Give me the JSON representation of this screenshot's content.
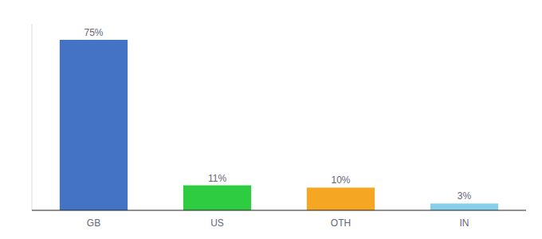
{
  "chart_data": {
    "type": "bar",
    "categories": [
      "GB",
      "US",
      "OTH",
      "IN"
    ],
    "values": [
      75,
      11,
      10,
      3
    ],
    "value_labels": [
      "75%",
      "11%",
      "10%",
      "3%"
    ],
    "colors": [
      "#4472c4",
      "#2ecc40",
      "#f5a623",
      "#87ceeb"
    ],
    "ylim": [
      0,
      82
    ],
    "data_labels": true,
    "tick_labels": "x",
    "grid": false
  }
}
